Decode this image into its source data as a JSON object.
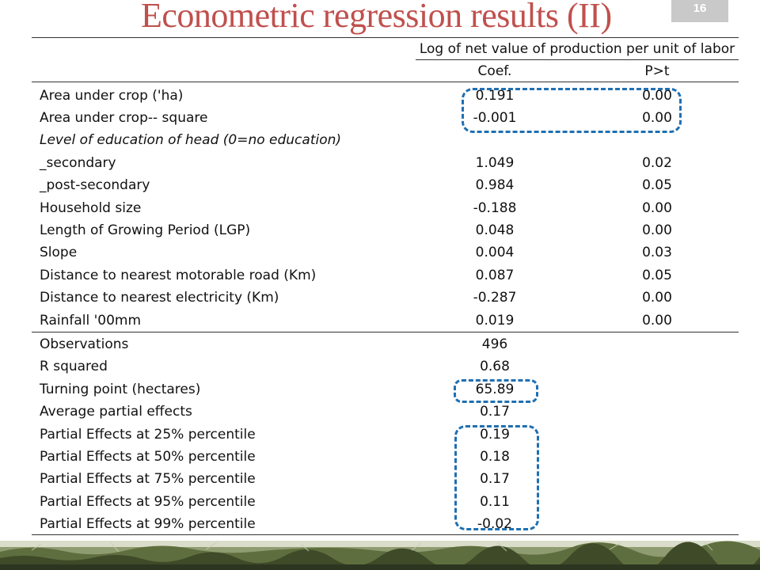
{
  "slide": {
    "title": "Econometric regression results (II)",
    "page_number": "16"
  },
  "table": {
    "dependent_variable": "Log of net value of production per unit of labor",
    "col_coef": "Coef.",
    "col_p": "P>t",
    "rows": [
      {
        "label": "Area under crop ('ha)",
        "coef": "0.191",
        "p": "0.00"
      },
      {
        "label": "Area under crop-- square",
        "coef": "-0.001",
        "p": "0.00"
      },
      {
        "label": "Level of education of head (0=no education)",
        "coef": "",
        "p": ""
      },
      {
        "label": "_secondary",
        "coef": "1.049",
        "p": "0.02"
      },
      {
        "label": "_post-secondary",
        "coef": "0.984",
        "p": "0.05"
      },
      {
        "label": "Household size",
        "coef": "-0.188",
        "p": "0.00"
      },
      {
        "label": "Length of Growing Period (LGP)",
        "coef": "0.048",
        "p": "0.00"
      },
      {
        "label": "Slope",
        "coef": "0.004",
        "p": "0.03"
      },
      {
        "label": "Distance to nearest motorable road (Km)",
        "coef": "0.087",
        "p": "0.05"
      },
      {
        "label": "Distance to nearest electricity (Km)",
        "coef": "-0.287",
        "p": "0.00"
      },
      {
        "label": "Rainfall '00mm",
        "coef": "0.019",
        "p": "0.00"
      }
    ],
    "stats": [
      {
        "label": "Observations",
        "coef": "496"
      },
      {
        "label": "R squared",
        "coef": "0.68"
      },
      {
        "label": "Turning point (hectares)",
        "coef": "65.89"
      },
      {
        "label": "Average partial effects",
        "coef": "0.17"
      },
      {
        "label": "Partial Effects at 25% percentile",
        "coef": "0.19"
      },
      {
        "label": "Partial Effects at 50% percentile",
        "coef": "0.18"
      },
      {
        "label": "Partial Effects at 75% percentile",
        "coef": "0.17"
      },
      {
        "label": "Partial Effects at 95% percentile",
        "coef": "0.11"
      },
      {
        "label": "Partial Effects at 99% percentile",
        "coef": "-0.02"
      }
    ]
  },
  "colors": {
    "title": "#c0504d",
    "highlight": "#1f6fb2",
    "badge": "#c9c9c9"
  }
}
